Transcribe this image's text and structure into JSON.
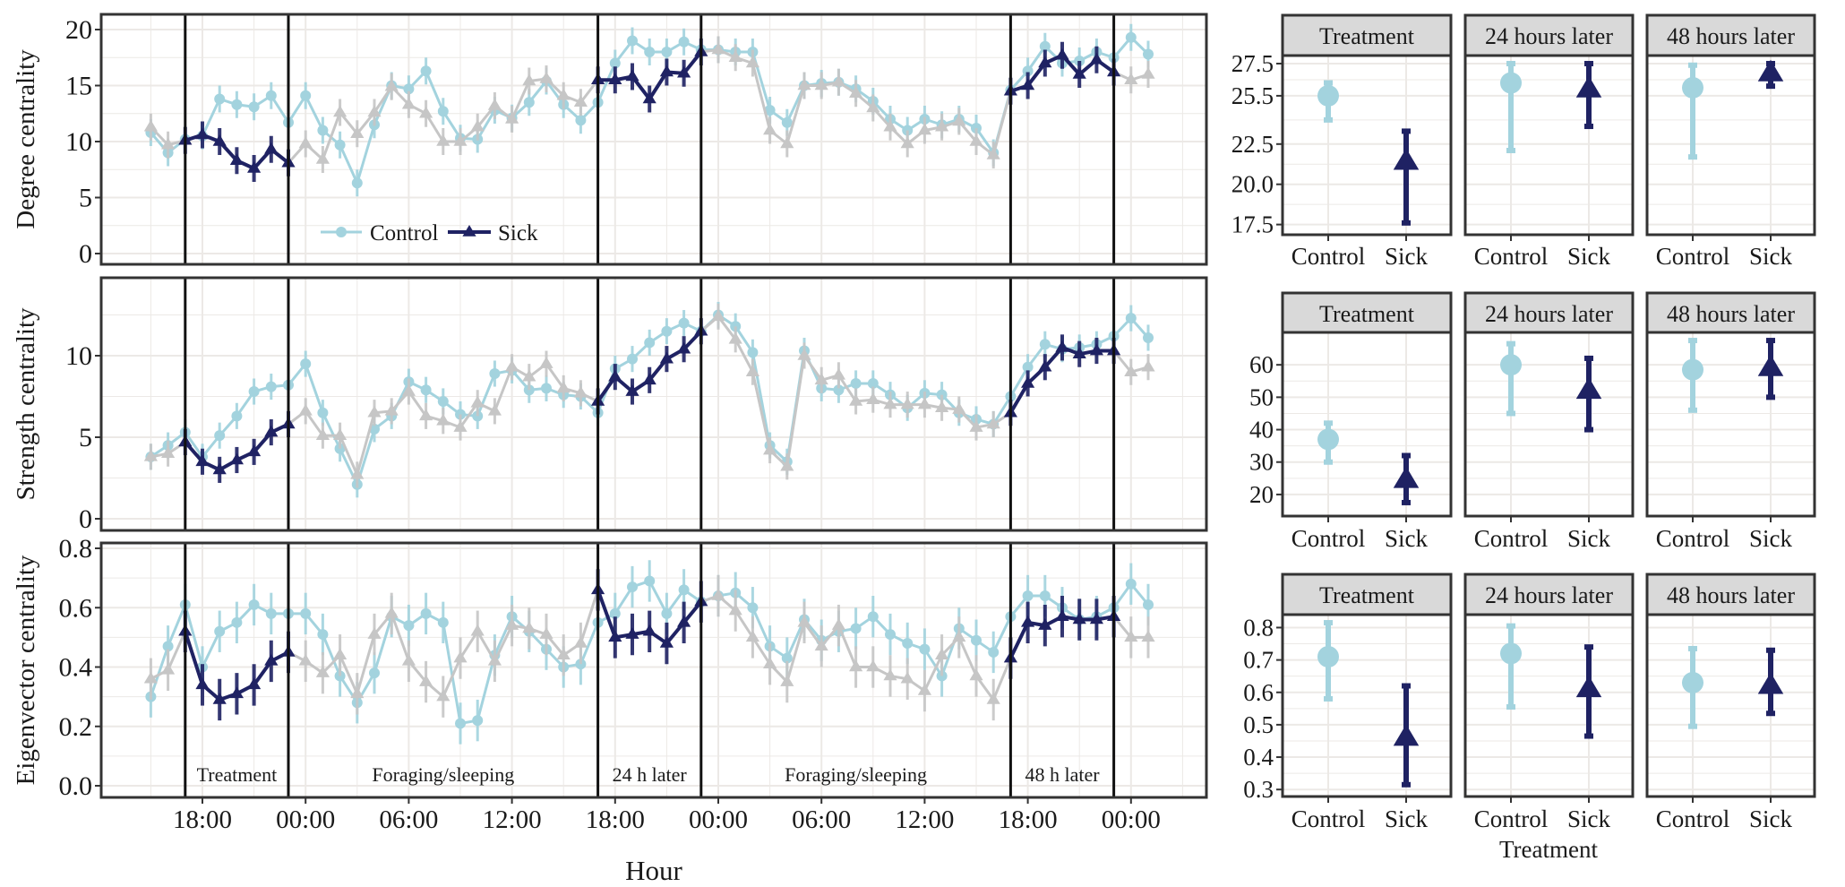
{
  "colors": {
    "control": "#a3d3de",
    "sick": "#1f2263",
    "grey": "#c6c6c6",
    "strip": "#d9d9d9",
    "grid": "#ece9e6",
    "frame": "#333333"
  },
  "legend": {
    "control": "Control",
    "sick": "Sick"
  },
  "x_axis": {
    "title": "Hour",
    "tick_hours": [
      0,
      6,
      12,
      18,
      24,
      30,
      36,
      42,
      48,
      54
    ],
    "tick_labels": [
      "18:00",
      "00:00",
      "06:00",
      "12:00",
      "18:00",
      "00:00",
      "06:00",
      "12:00",
      "18:00",
      "00:00"
    ],
    "hour_unit": "hours relative to 18:00 on day 1"
  },
  "periods": [
    {
      "label": "Treatment",
      "start": -1,
      "end": 5,
      "sick_highlight": true
    },
    {
      "label": "Foraging/sleeping",
      "start": 5,
      "end": 23,
      "sick_highlight": false
    },
    {
      "label": "24 h later",
      "start": 23,
      "end": 29,
      "sick_highlight": true
    },
    {
      "label": "Foraging/sleeping",
      "start": 29,
      "end": 47,
      "sick_highlight": false
    },
    {
      "label": "48 h later",
      "start": 47,
      "end": 53,
      "sick_highlight": true
    }
  ],
  "facet_axis_title": "Treatment",
  "chart_data": [
    {
      "type": "line",
      "ylabel": "Degree centrality",
      "ylim": [
        0,
        20
      ],
      "yticks": [
        0,
        5,
        10,
        15,
        20
      ],
      "ytick_labels": [
        "0",
        "5",
        "10",
        "15",
        "20"
      ],
      "x_start": -3,
      "error": 1.2,
      "series": [
        {
          "name": "Control",
          "values": [
            10.8,
            9.0,
            10.2,
            10.5,
            13.8,
            13.3,
            13.1,
            14.1,
            11.7,
            14.1,
            11.0,
            9.7,
            6.3,
            11.5,
            15.0,
            14.7,
            16.3,
            12.7,
            10.3,
            10.2,
            12.8,
            12.1,
            13.5,
            15.4,
            13.3,
            11.9,
            13.5,
            17.0,
            19.0,
            18.0,
            18.0,
            18.9,
            18.2,
            18.2,
            18.0,
            18.0,
            12.8,
            11.7,
            15.0,
            15.2,
            15.3,
            14.7,
            13.6,
            12.0,
            11.0,
            12.0,
            11.5,
            12.0,
            11.2,
            9.0,
            14.6,
            16.3,
            18.5,
            17.0,
            17.2,
            18.0,
            17.5,
            19.3,
            17.8
          ]
        },
        {
          "name": "Sick",
          "values": [
            11.3,
            9.7,
            10.1,
            10.6,
            10.0,
            8.3,
            7.6,
            9.3,
            8.1,
            9.8,
            8.4,
            12.6,
            10.7,
            12.6,
            14.9,
            13.3,
            12.5,
            10.0,
            10.0,
            11.3,
            13.2,
            12.0,
            15.4,
            15.6,
            14.1,
            13.5,
            15.5,
            15.5,
            15.8,
            13.8,
            16.2,
            16.1,
            18.0,
            18.2,
            17.5,
            17.0,
            11.0,
            9.8,
            15.0,
            15.0,
            15.3,
            14.3,
            13.0,
            11.3,
            9.8,
            11.0,
            11.3,
            11.8,
            10.0,
            8.8,
            14.5,
            15.0,
            17.0,
            17.7,
            16.0,
            17.3,
            16.2,
            15.5,
            16.0
          ]
        }
      ]
    },
    {
      "type": "line",
      "ylabel": "Strength centrality",
      "ylim": [
        0,
        13
      ],
      "yticks": [
        0,
        5,
        10
      ],
      "ytick_labels": [
        "0",
        "5",
        "10"
      ],
      "x_start": -3,
      "error": 0.8,
      "series": [
        {
          "name": "Control",
          "values": [
            3.8,
            4.5,
            5.3,
            3.8,
            5.1,
            6.3,
            7.8,
            8.1,
            8.2,
            9.5,
            6.5,
            4.3,
            2.1,
            5.5,
            6.3,
            8.4,
            7.9,
            7.2,
            6.4,
            6.3,
            8.9,
            9.1,
            7.9,
            8.0,
            7.6,
            7.5,
            6.5,
            9.2,
            9.8,
            10.8,
            11.5,
            12.0,
            11.5,
            12.5,
            11.8,
            10.2,
            4.5,
            3.5,
            10.3,
            8.0,
            7.9,
            8.3,
            8.3,
            7.6,
            6.8,
            7.7,
            7.6,
            6.5,
            6.1,
            5.8,
            7.5,
            9.3,
            10.7,
            10.4,
            10.5,
            10.7,
            11.2,
            12.3,
            11.1
          ]
        },
        {
          "name": "Sick",
          "values": [
            3.8,
            4.0,
            4.7,
            3.5,
            3.0,
            3.6,
            4.1,
            5.3,
            5.8,
            6.6,
            5.1,
            5.1,
            2.7,
            6.5,
            6.6,
            7.8,
            6.3,
            6.0,
            5.6,
            7.1,
            6.6,
            9.3,
            8.7,
            9.5,
            8.0,
            7.7,
            7.2,
            8.7,
            7.8,
            8.5,
            9.8,
            10.4,
            11.5,
            12.4,
            11.0,
            9.0,
            4.2,
            3.2,
            10.0,
            8.5,
            8.8,
            7.2,
            7.3,
            7.0,
            7.0,
            7.0,
            6.8,
            6.7,
            5.6,
            5.8,
            6.5,
            8.3,
            9.3,
            10.5,
            10.1,
            10.3,
            10.3,
            9.0,
            9.3
          ]
        }
      ]
    },
    {
      "type": "line",
      "ylabel": "Eigenvector centrality",
      "ylim": [
        0,
        0.8
      ],
      "yticks": [
        0,
        0.2,
        0.4,
        0.6,
        0.8
      ],
      "ytick_labels": [
        "0.0",
        "0.2",
        "0.4",
        "0.6",
        "0.8"
      ],
      "x_start": -3,
      "error": 0.07,
      "series": [
        {
          "name": "Control",
          "values": [
            0.3,
            0.47,
            0.61,
            0.4,
            0.52,
            0.55,
            0.61,
            0.58,
            0.58,
            0.58,
            0.51,
            0.37,
            0.28,
            0.38,
            0.57,
            0.54,
            0.58,
            0.55,
            0.21,
            0.22,
            0.44,
            0.57,
            0.52,
            0.46,
            0.4,
            0.41,
            0.55,
            0.58,
            0.67,
            0.69,
            0.58,
            0.66,
            0.62,
            0.64,
            0.65,
            0.6,
            0.47,
            0.43,
            0.56,
            0.49,
            0.52,
            0.53,
            0.57,
            0.51,
            0.48,
            0.46,
            0.37,
            0.53,
            0.49,
            0.45,
            0.57,
            0.64,
            0.64,
            0.6,
            0.56,
            0.57,
            0.6,
            0.68,
            0.61
          ]
        },
        {
          "name": "Sick",
          "values": [
            0.36,
            0.39,
            0.52,
            0.34,
            0.29,
            0.31,
            0.34,
            0.42,
            0.45,
            0.42,
            0.38,
            0.44,
            0.31,
            0.51,
            0.58,
            0.42,
            0.35,
            0.3,
            0.43,
            0.52,
            0.42,
            0.54,
            0.53,
            0.51,
            0.44,
            0.48,
            0.66,
            0.5,
            0.51,
            0.52,
            0.48,
            0.55,
            0.62,
            0.64,
            0.59,
            0.5,
            0.41,
            0.35,
            0.55,
            0.47,
            0.54,
            0.4,
            0.4,
            0.37,
            0.36,
            0.32,
            0.44,
            0.5,
            0.37,
            0.29,
            0.43,
            0.55,
            0.54,
            0.57,
            0.56,
            0.56,
            0.57,
            0.5,
            0.5
          ]
        }
      ]
    },
    {
      "type": "scatter",
      "metric": "Degree centrality",
      "yticks": [
        17.5,
        20.0,
        22.5,
        25.5,
        27.5
      ],
      "ytick_labels": [
        "17.5",
        "20.0",
        "22.5",
        "25.5",
        "27.5"
      ],
      "ylim": [
        17.2,
        28.0
      ],
      "categories": [
        "Control",
        "Sick"
      ],
      "facets": [
        {
          "label": "Treatment",
          "points": [
            {
              "group": "Control",
              "mean": 25.5,
              "low": 24.0,
              "high": 26.3
            },
            {
              "group": "Sick",
              "mean": 21.4,
              "low": 17.6,
              "high": 23.3
            }
          ]
        },
        {
          "label": "24 hours later",
          "points": [
            {
              "group": "Control",
              "mean": 26.3,
              "low": 22.1,
              "high": 27.5
            },
            {
              "group": "Sick",
              "mean": 25.9,
              "low": 23.6,
              "high": 27.5
            }
          ]
        },
        {
          "label": "48 hours later",
          "points": [
            {
              "group": "Control",
              "mean": 26.0,
              "low": 21.7,
              "high": 27.4
            },
            {
              "group": "Sick",
              "mean": 26.9,
              "low": 26.1,
              "high": 27.5
            }
          ]
        }
      ]
    },
    {
      "type": "scatter",
      "metric": "Strength centrality",
      "yticks": [
        20,
        30,
        40,
        50,
        60
      ],
      "ytick_labels": [
        "20",
        "30",
        "40",
        "50",
        "60"
      ],
      "ylim": [
        15,
        70
      ],
      "categories": [
        "Control",
        "Sick"
      ],
      "facets": [
        {
          "label": "Treatment",
          "points": [
            {
              "group": "Control",
              "mean": 37,
              "low": 30,
              "high": 42
            },
            {
              "group": "Sick",
              "mean": 24.5,
              "low": 17.5,
              "high": 32
            }
          ]
        },
        {
          "label": "24 hours later",
          "points": [
            {
              "group": "Control",
              "mean": 60,
              "low": 45,
              "high": 66.5
            },
            {
              "group": "Sick",
              "mean": 52,
              "low": 40,
              "high": 62
            }
          ]
        },
        {
          "label": "48 hours later",
          "points": [
            {
              "group": "Control",
              "mean": 58.5,
              "low": 46,
              "high": 67.5
            },
            {
              "group": "Sick",
              "mean": 59,
              "low": 50,
              "high": 67.5
            }
          ]
        }
      ]
    },
    {
      "type": "scatter",
      "metric": "Eigenvector centrality",
      "yticks": [
        0.3,
        0.4,
        0.5,
        0.6,
        0.7,
        0.8
      ],
      "ytick_labels": [
        "0.3",
        "0.4",
        "0.5",
        "0.6",
        "0.7",
        "0.8"
      ],
      "ylim": [
        0.295,
        0.84
      ],
      "categories": [
        "Control",
        "Sick"
      ],
      "facets": [
        {
          "label": "Treatment",
          "points": [
            {
              "group": "Control",
              "mean": 0.71,
              "low": 0.58,
              "high": 0.815
            },
            {
              "group": "Sick",
              "mean": 0.46,
              "low": 0.315,
              "high": 0.62
            }
          ]
        },
        {
          "label": "24 hours later",
          "points": [
            {
              "group": "Control",
              "mean": 0.72,
              "low": 0.555,
              "high": 0.805
            },
            {
              "group": "Sick",
              "mean": 0.61,
              "low": 0.465,
              "high": 0.74
            }
          ]
        },
        {
          "label": "48 hours later",
          "points": [
            {
              "group": "Control",
              "mean": 0.63,
              "low": 0.495,
              "high": 0.735
            },
            {
              "group": "Sick",
              "mean": 0.62,
              "low": 0.535,
              "high": 0.73
            }
          ]
        }
      ]
    }
  ]
}
